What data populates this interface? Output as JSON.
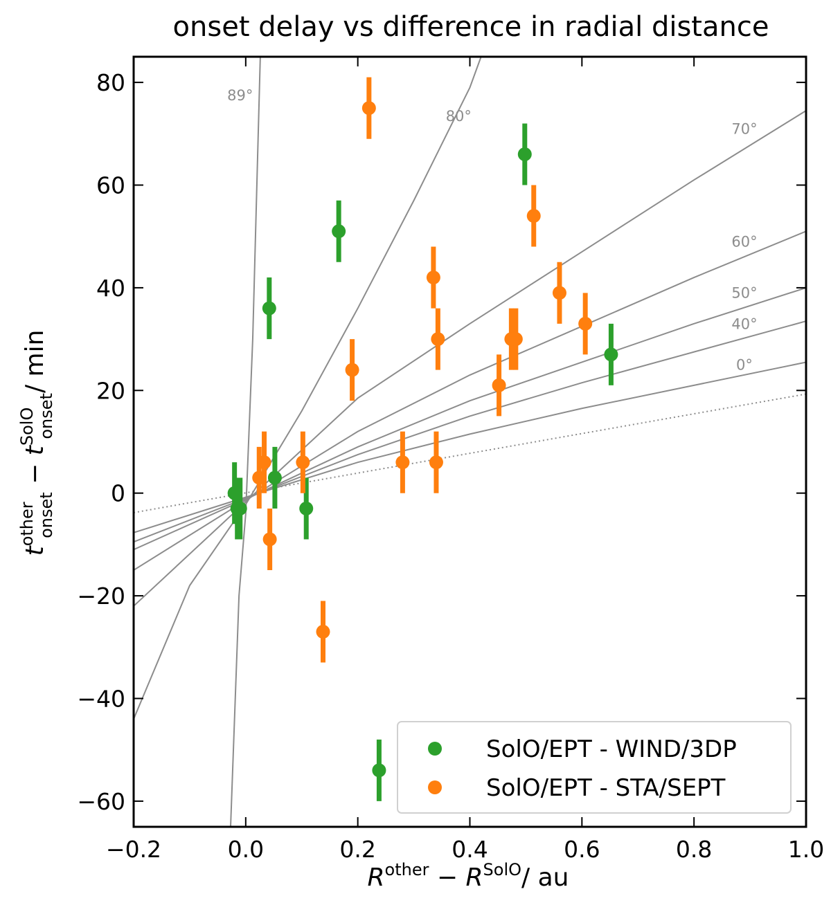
{
  "chart_data": {
    "type": "scatter",
    "title": "onset delay vs difference in radial distance",
    "xlabel": {
      "base": "R",
      "sup1": "other",
      "minus": " − ",
      "base2": "R",
      "sup2": "SolO",
      "unit": "/ au"
    },
    "ylabel": {
      "base": "t",
      "sup1": "other",
      "sub1": "onset",
      "minus": " − ",
      "base2": "t",
      "sup2": "SolO",
      "sub2": "onset",
      "unit": "/ min"
    },
    "xlim": [
      -0.2,
      1.0
    ],
    "ylim": [
      -65,
      85
    ],
    "xticks": [
      -0.2,
      0.0,
      0.2,
      0.4,
      0.6,
      0.8,
      1.0
    ],
    "xtick_labels": [
      "−0.2",
      "0.0",
      "0.2",
      "0.4",
      "0.6",
      "0.8",
      "1.0"
    ],
    "yticks": [
      -60,
      -40,
      -20,
      0,
      20,
      40,
      60,
      80
    ],
    "ytick_labels": [
      "−60",
      "−40",
      "−20",
      "0",
      "20",
      "40",
      "60",
      "80"
    ],
    "grid": false,
    "legend_position": "bottom-right",
    "series": [
      {
        "name": "SolO/EPT - WIND/3DP",
        "color": "#2ca02c",
        "points": [
          {
            "x": -0.02,
            "y": 0,
            "err": 6
          },
          {
            "x": -0.015,
            "y": -3,
            "err": 6
          },
          {
            "x": -0.01,
            "y": -3,
            "err": 6
          },
          {
            "x": 0.042,
            "y": 36,
            "err": 6
          },
          {
            "x": 0.052,
            "y": 3,
            "err": 6
          },
          {
            "x": 0.108,
            "y": -3,
            "err": 6
          },
          {
            "x": 0.166,
            "y": 51,
            "err": 6
          },
          {
            "x": 0.238,
            "y": -54,
            "err": 6
          },
          {
            "x": 0.498,
            "y": 66,
            "err": 6
          },
          {
            "x": 0.652,
            "y": 27,
            "err": 6
          }
        ]
      },
      {
        "name": "SolO/EPT - STA/SEPT",
        "color": "#ff7f0e",
        "points": [
          {
            "x": 0.024,
            "y": 3,
            "err": 6
          },
          {
            "x": 0.033,
            "y": 6,
            "err": 6
          },
          {
            "x": 0.043,
            "y": -9,
            "err": 6
          },
          {
            "x": 0.102,
            "y": 6,
            "err": 6
          },
          {
            "x": 0.138,
            "y": -27,
            "err": 6
          },
          {
            "x": 0.19,
            "y": 24,
            "err": 6
          },
          {
            "x": 0.22,
            "y": 75,
            "err": 6
          },
          {
            "x": 0.28,
            "y": 6,
            "err": 6
          },
          {
            "x": 0.335,
            "y": 42,
            "err": 6
          },
          {
            "x": 0.34,
            "y": 6,
            "err": 6
          },
          {
            "x": 0.343,
            "y": 30,
            "err": 6
          },
          {
            "x": 0.452,
            "y": 21,
            "err": 6
          },
          {
            "x": 0.474,
            "y": 30,
            "err": 6
          },
          {
            "x": 0.482,
            "y": 30,
            "err": 6
          },
          {
            "x": 0.514,
            "y": 54,
            "err": 6
          },
          {
            "x": 0.56,
            "y": 39,
            "err": 6
          },
          {
            "x": 0.606,
            "y": 33,
            "err": 6
          }
        ]
      }
    ],
    "reference_curves": [
      {
        "label": "89°",
        "points": [
          [
            -0.027,
            -65
          ],
          [
            -0.012,
            -20
          ],
          [
            0.0,
            -4
          ],
          [
            0.0125,
            30
          ],
          [
            0.026,
            85
          ]
        ]
      },
      {
        "label": "80°",
        "points": [
          [
            -0.2,
            -44
          ],
          [
            -0.1,
            -18
          ],
          [
            0.0,
            -2.2
          ],
          [
            0.1,
            16
          ],
          [
            0.2,
            36
          ],
          [
            0.3,
            57
          ],
          [
            0.4,
            79
          ],
          [
            0.42,
            85
          ]
        ]
      },
      {
        "label": "70°",
        "points": [
          [
            -0.2,
            -22
          ],
          [
            0.0,
            -1.7
          ],
          [
            0.2,
            18.5
          ],
          [
            0.4,
            33
          ],
          [
            0.6,
            47
          ],
          [
            0.8,
            61
          ],
          [
            1.0,
            74.5
          ]
        ]
      },
      {
        "label": "60°",
        "points": [
          [
            -0.2,
            -15
          ],
          [
            0.0,
            -1.4
          ],
          [
            0.2,
            12
          ],
          [
            0.4,
            23
          ],
          [
            0.6,
            32.5
          ],
          [
            0.8,
            42
          ],
          [
            1.0,
            51
          ]
        ]
      },
      {
        "label": "50°",
        "points": [
          [
            -0.2,
            -11
          ],
          [
            0.0,
            -1.2
          ],
          [
            0.2,
            9
          ],
          [
            0.4,
            18
          ],
          [
            0.6,
            25.5
          ],
          [
            0.8,
            33
          ],
          [
            1.0,
            40
          ]
        ]
      },
      {
        "label": "40°",
        "points": [
          [
            -0.2,
            -9.5
          ],
          [
            0.0,
            -1.0
          ],
          [
            0.2,
            7.5
          ],
          [
            0.4,
            15
          ],
          [
            0.6,
            21.5
          ],
          [
            0.8,
            27.5
          ],
          [
            1.0,
            33.5
          ]
        ]
      },
      {
        "label": "0°",
        "points": [
          [
            -0.2,
            -7.7
          ],
          [
            0.0,
            -0.8
          ],
          [
            0.2,
            6
          ],
          [
            0.4,
            11.5
          ],
          [
            0.6,
            16.5
          ],
          [
            0.8,
            21
          ],
          [
            1.0,
            25.5
          ]
        ]
      }
    ],
    "reference_dotted": {
      "points": [
        [
          -0.2,
          -3.8
        ],
        [
          1.0,
          19.3
        ]
      ]
    },
    "angle_labels": [
      {
        "text": "89°",
        "x": -0.01,
        "y": 76.5
      },
      {
        "text": "80°",
        "x": 0.38,
        "y": 72.5
      },
      {
        "text": "70°",
        "x": 0.89,
        "y": 70
      },
      {
        "text": "60°",
        "x": 0.89,
        "y": 48
      },
      {
        "text": "50°",
        "x": 0.89,
        "y": 38
      },
      {
        "text": "40°",
        "x": 0.89,
        "y": 32
      },
      {
        "text": "0°",
        "x": 0.89,
        "y": 24
      }
    ]
  }
}
